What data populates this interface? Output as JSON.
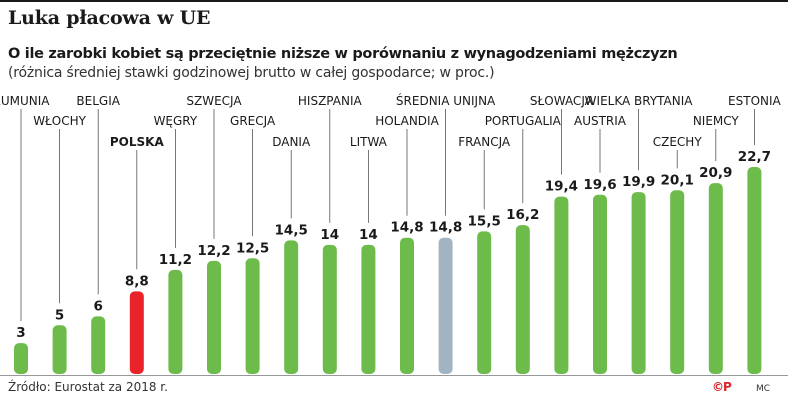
{
  "header": {
    "title": "Luka płacowa w UE",
    "subtitle": "O ile zarobki kobiet są przeciętnie niższe w porównaniu z wynagodzeniami mężczyzn",
    "note": "(różnica średniej stawki godzinowej brutto w całej gospodarce; w proc.)"
  },
  "footer": {
    "source": "Źródło: Eurostat za 2018 r.",
    "logo": "©P",
    "author": "MC"
  },
  "colors": {
    "default": "#6dbb4b",
    "highlight": "#e8232a",
    "average": "#a2b4c2"
  },
  "chart_data": {
    "type": "bar",
    "categories": [
      "RUMUNIA",
      "WŁOCHY",
      "BELGIA",
      "POLSKA",
      "WĘGRY",
      "SZWECJA",
      "GRECJA",
      "DANIA",
      "HISZPANIA",
      "LITWA",
      "HOLANDIA",
      "ŚREDNIA UNIJNA",
      "FRANCJA",
      "PORTUGALIA",
      "SŁOWACJA",
      "AUSTRIA",
      "WIELKA BRYTANIA",
      "CZECHY",
      "NIEMCY",
      "ESTONIA"
    ],
    "values": [
      3,
      5,
      6,
      8.8,
      11.2,
      12.2,
      12.5,
      14.5,
      14,
      14,
      14.8,
      14.8,
      15.5,
      16.2,
      19.4,
      19.6,
      19.9,
      20.1,
      20.9,
      22.7
    ],
    "value_labels": [
      "3",
      "5",
      "6",
      "8,8",
      "11,2",
      "12,2",
      "12,5",
      "14,5",
      "14",
      "14",
      "14,8",
      "14,8",
      "15,5",
      "16,2",
      "19,4",
      "19,6",
      "19,9",
      "20,1",
      "20,9",
      "22,7"
    ],
    "highlight": "POLSKA",
    "average": "ŚREDNIA UNIJNA"
  }
}
